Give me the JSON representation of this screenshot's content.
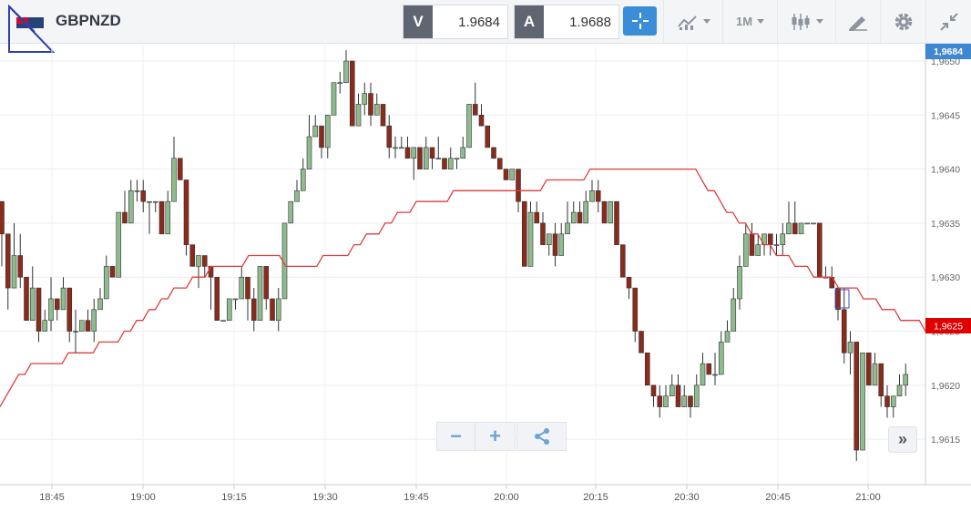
{
  "toolbar": {
    "symbol": "GBPNZD",
    "sell_label": "V",
    "sell_price": "1.9684",
    "buy_label": "A",
    "buy_price": "1.9688",
    "timeframe": "1M",
    "icons": [
      "flag-icon",
      "crosshair-icon",
      "indicators-icon",
      "timeframe-dropdown",
      "candle-type-icon",
      "drawing-icon",
      "gear-icon",
      "collapse-icon"
    ],
    "accent_color": "#3a8ed8"
  },
  "chart_data": {
    "type": "candlestick",
    "symbol": "GBPNZD",
    "timeframe": "1M",
    "x_ticks": [
      "18:45",
      "19:00",
      "19:15",
      "19:30",
      "19:45",
      "20:00",
      "20:15",
      "20:30",
      "20:45",
      "21:00"
    ],
    "y_ticks": [
      "1,9650",
      "1,9645",
      "1,9640",
      "1,9635",
      "1,9630",
      "1,9625",
      "1,9620",
      "1,9615"
    ],
    "ylim": [
      1.96108,
      1.96516
    ],
    "last_price_label": "1,9684",
    "ma_label": "1,9625",
    "up_color": "#8fbc8f",
    "down_color": "#8b2b1b",
    "ma_color": "#e03c3c",
    "grid": true,
    "candles": [
      [
        1.9637,
        1.9637,
        1.9631,
        1.9634
      ],
      [
        1.9634,
        1.9634,
        1.9627,
        1.9629
      ],
      [
        1.9629,
        1.9635,
        1.9629,
        1.9632
      ],
      [
        1.9632,
        1.9634,
        1.9629,
        1.963
      ],
      [
        1.963,
        1.963,
        1.9626,
        1.9626
      ],
      [
        1.9626,
        1.9631,
        1.9626,
        1.9629
      ],
      [
        1.9629,
        1.9629,
        1.9624,
        1.9625
      ],
      [
        1.9625,
        1.9627,
        1.9625,
        1.9626
      ],
      [
        1.9626,
        1.963,
        1.9625,
        1.9628
      ],
      [
        1.9628,
        1.9628,
        1.9626,
        1.9627
      ],
      [
        1.9627,
        1.963,
        1.9627,
        1.9629
      ],
      [
        1.9629,
        1.9629,
        1.9624,
        1.9625
      ],
      [
        1.9625,
        1.9627,
        1.9623,
        1.9625
      ],
      [
        1.9625,
        1.9626,
        1.9625,
        1.9626
      ],
      [
        1.9626,
        1.9627,
        1.9625,
        1.9625
      ],
      [
        1.9625,
        1.9628,
        1.9624,
        1.9627
      ],
      [
        1.9627,
        1.9629,
        1.9627,
        1.9628
      ],
      [
        1.9628,
        1.9632,
        1.9628,
        1.9631
      ],
      [
        1.9631,
        1.9631,
        1.963,
        1.963
      ],
      [
        1.963,
        1.9636,
        1.963,
        1.9636
      ],
      [
        1.9636,
        1.9638,
        1.9635,
        1.9635
      ],
      [
        1.9635,
        1.9639,
        1.9635,
        1.9638
      ],
      [
        1.9638,
        1.9639,
        1.9637,
        1.9638
      ],
      [
        1.9638,
        1.9639,
        1.9636,
        1.9637
      ],
      [
        1.9637,
        1.9637,
        1.9634,
        1.9637
      ],
      [
        1.9637,
        1.9637,
        1.9636,
        1.9637
      ],
      [
        1.9637,
        1.9637,
        1.9634,
        1.9634
      ],
      [
        1.9634,
        1.9638,
        1.9634,
        1.9637
      ],
      [
        1.9637,
        1.9643,
        1.9637,
        1.9641
      ],
      [
        1.9641,
        1.9641,
        1.9639,
        1.9639
      ],
      [
        1.9639,
        1.9639,
        1.9632,
        1.9633
      ],
      [
        1.9633,
        1.9633,
        1.9631,
        1.9631
      ],
      [
        1.9631,
        1.9632,
        1.9629,
        1.9632
      ],
      [
        1.9632,
        1.9632,
        1.963,
        1.9631
      ],
      [
        1.9631,
        1.9631,
        1.9627,
        1.963
      ],
      [
        1.963,
        1.963,
        1.9626,
        1.9626
      ],
      [
        1.9626,
        1.9626,
        1.9626,
        1.9626
      ],
      [
        1.9626,
        1.9628,
        1.9626,
        1.9628
      ],
      [
        1.9628,
        1.9628,
        1.9627,
        1.9628
      ],
      [
        1.9628,
        1.9631,
        1.9628,
        1.963
      ],
      [
        1.963,
        1.963,
        1.9626,
        1.9628
      ],
      [
        1.9628,
        1.9629,
        1.9625,
        1.9626
      ],
      [
        1.9626,
        1.9631,
        1.9626,
        1.9631
      ],
      [
        1.9631,
        1.9631,
        1.9627,
        1.9628
      ],
      [
        1.9628,
        1.9628,
        1.9626,
        1.9626
      ],
      [
        1.9626,
        1.9629,
        1.9625,
        1.9628
      ],
      [
        1.9628,
        1.9635,
        1.9628,
        1.9635
      ],
      [
        1.9635,
        1.9637,
        1.9635,
        1.9637
      ],
      [
        1.9637,
        1.9639,
        1.9637,
        1.9638
      ],
      [
        1.9638,
        1.9641,
        1.9638,
        1.964
      ],
      [
        1.964,
        1.9645,
        1.964,
        1.9643
      ],
      [
        1.9643,
        1.9645,
        1.9643,
        1.9644
      ],
      [
        1.9644,
        1.9644,
        1.9641,
        1.9642
      ],
      [
        1.9642,
        1.9645,
        1.9641,
        1.9645
      ],
      [
        1.9645,
        1.9648,
        1.9645,
        1.9648
      ],
      [
        1.9648,
        1.9649,
        1.9647,
        1.9648
      ],
      [
        1.9648,
        1.9651,
        1.9648,
        1.965
      ],
      [
        1.965,
        1.965,
        1.9644,
        1.9644
      ],
      [
        1.9644,
        1.9647,
        1.9644,
        1.9646
      ],
      [
        1.9646,
        1.9648,
        1.9645,
        1.9647
      ],
      [
        1.9647,
        1.9648,
        1.9644,
        1.9645
      ],
      [
        1.9645,
        1.9647,
        1.9645,
        1.9646
      ],
      [
        1.9646,
        1.9646,
        1.9644,
        1.9644
      ],
      [
        1.9644,
        1.9645,
        1.9641,
        1.9642
      ],
      [
        1.9642,
        1.9643,
        1.9641,
        1.9642
      ],
      [
        1.9642,
        1.9643,
        1.9642,
        1.9642
      ],
      [
        1.9642,
        1.9643,
        1.9641,
        1.9641
      ],
      [
        1.9641,
        1.9642,
        1.9639,
        1.9642
      ],
      [
        1.9642,
        1.9642,
        1.964,
        1.964
      ],
      [
        1.964,
        1.9643,
        1.964,
        1.9642
      ],
      [
        1.9642,
        1.9642,
        1.964,
        1.9641
      ],
      [
        1.9641,
        1.9643,
        1.9641,
        1.9641
      ],
      [
        1.9641,
        1.9641,
        1.964,
        1.964
      ],
      [
        1.964,
        1.9642,
        1.964,
        1.9641
      ],
      [
        1.9641,
        1.9641,
        1.964,
        1.9641
      ],
      [
        1.9641,
        1.9643,
        1.9641,
        1.9642
      ],
      [
        1.9642,
        1.9646,
        1.9642,
        1.9646
      ],
      [
        1.9646,
        1.9648,
        1.9645,
        1.9645
      ],
      [
        1.9645,
        1.9646,
        1.9644,
        1.9644
      ],
      [
        1.9644,
        1.9644,
        1.9642,
        1.9642
      ],
      [
        1.9642,
        1.9642,
        1.9641,
        1.9641
      ],
      [
        1.9641,
        1.9641,
        1.964,
        1.964
      ],
      [
        1.964,
        1.964,
        1.9639,
        1.9639
      ],
      [
        1.9639,
        1.964,
        1.9639,
        1.964
      ],
      [
        1.964,
        1.964,
        1.9636,
        1.9637
      ],
      [
        1.9637,
        1.9637,
        1.9631,
        1.9631
      ],
      [
        1.9631,
        1.9637,
        1.9631,
        1.9636
      ],
      [
        1.9636,
        1.9637,
        1.9635,
        1.9635
      ],
      [
        1.9635,
        1.9636,
        1.9633,
        1.9633
      ],
      [
        1.9633,
        1.9634,
        1.9632,
        1.9634
      ],
      [
        1.9634,
        1.9635,
        1.9631,
        1.9632
      ],
      [
        1.9632,
        1.9635,
        1.9632,
        1.9634
      ],
      [
        1.9634,
        1.9637,
        1.9634,
        1.9635
      ],
      [
        1.9635,
        1.9637,
        1.9635,
        1.9636
      ],
      [
        1.9636,
        1.9637,
        1.9635,
        1.9635
      ],
      [
        1.9635,
        1.9638,
        1.9635,
        1.9637
      ],
      [
        1.9637,
        1.9639,
        1.9637,
        1.9638
      ],
      [
        1.9638,
        1.9639,
        1.9636,
        1.9637
      ],
      [
        1.9637,
        1.9637,
        1.9635,
        1.9635
      ],
      [
        1.9635,
        1.9637,
        1.9635,
        1.9637
      ],
      [
        1.9637,
        1.9637,
        1.9633,
        1.9633
      ],
      [
        1.9633,
        1.9633,
        1.963,
        1.963
      ],
      [
        1.963,
        1.963,
        1.9628,
        1.9629
      ],
      [
        1.9629,
        1.9629,
        1.9624,
        1.9625
      ],
      [
        1.9625,
        1.9625,
        1.9623,
        1.9623
      ],
      [
        1.9623,
        1.9623,
        1.962,
        1.962
      ],
      [
        1.962,
        1.962,
        1.9618,
        1.9619
      ],
      [
        1.9619,
        1.962,
        1.9617,
        1.9618
      ],
      [
        1.9618,
        1.962,
        1.9618,
        1.9619
      ],
      [
        1.9619,
        1.9621,
        1.9619,
        1.962
      ],
      [
        1.962,
        1.9621,
        1.9618,
        1.9618
      ],
      [
        1.9618,
        1.962,
        1.9618,
        1.9619
      ],
      [
        1.9619,
        1.9619,
        1.9617,
        1.9618
      ],
      [
        1.9618,
        1.9621,
        1.9618,
        1.962
      ],
      [
        1.962,
        1.9623,
        1.962,
        1.9622
      ],
      [
        1.9622,
        1.9622,
        1.9621,
        1.9621
      ],
      [
        1.9621,
        1.9623,
        1.962,
        1.9621
      ],
      [
        1.9621,
        1.9625,
        1.9621,
        1.9624
      ],
      [
        1.9624,
        1.9626,
        1.9624,
        1.9625
      ],
      [
        1.9625,
        1.9629,
        1.9625,
        1.9628
      ],
      [
        1.9628,
        1.9632,
        1.9627,
        1.9631
      ],
      [
        1.9631,
        1.9635,
        1.9631,
        1.9634
      ],
      [
        1.9634,
        1.9635,
        1.9632,
        1.9632
      ],
      [
        1.9632,
        1.9634,
        1.9632,
        1.9633
      ],
      [
        1.9633,
        1.9634,
        1.9632,
        1.9634
      ],
      [
        1.9634,
        1.9634,
        1.9632,
        1.9633
      ],
      [
        1.9633,
        1.9634,
        1.9632,
        1.9633
      ],
      [
        1.9633,
        1.9635,
        1.9632,
        1.9634
      ],
      [
        1.9634,
        1.9637,
        1.9634,
        1.9635
      ],
      [
        1.9635,
        1.9637,
        1.9634,
        1.9634
      ],
      [
        1.9634,
        1.9635,
        1.9634,
        1.9635
      ],
      [
        1.9635,
        1.9635,
        1.9635,
        1.9635
      ],
      [
        1.9635,
        1.9635,
        1.9635,
        1.9635
      ],
      [
        1.9635,
        1.9635,
        1.963,
        1.963
      ],
      [
        1.963,
        1.9631,
        1.963,
        1.963
      ],
      [
        1.963,
        1.9631,
        1.9629,
        1.9629
      ],
      [
        1.9629,
        1.9629,
        1.9626,
        1.9627
      ],
      [
        1.9627,
        1.9629,
        1.9622,
        1.9623
      ],
      [
        1.9623,
        1.9625,
        1.9621,
        1.9624
      ],
      [
        1.9624,
        1.9624,
        1.9613,
        1.9614
      ],
      [
        1.9614,
        1.9623,
        1.9614,
        1.9623
      ],
      [
        1.9623,
        1.9623,
        1.962,
        1.962
      ],
      [
        1.962,
        1.9623,
        1.962,
        1.9622
      ],
      [
        1.9622,
        1.9622,
        1.9618,
        1.9619
      ],
      [
        1.9619,
        1.962,
        1.9617,
        1.9618
      ],
      [
        1.9618,
        1.9619,
        1.9617,
        1.9619
      ],
      [
        1.9619,
        1.9621,
        1.9619,
        1.962
      ],
      [
        1.962,
        1.9622,
        1.9619,
        1.9621
      ]
    ],
    "moving_average": [
      1.9618,
      1.9619,
      1.962,
      1.9621,
      1.9621,
      1.9622,
      1.9622,
      1.9622,
      1.9622,
      1.9622,
      1.9622,
      1.9623,
      1.9623,
      1.9623,
      1.9623,
      1.9623,
      1.9624,
      1.9624,
      1.9624,
      1.9624,
      1.9625,
      1.9625,
      1.9626,
      1.9626,
      1.9627,
      1.9627,
      1.9628,
      1.9628,
      1.9629,
      1.9629,
      1.9629,
      1.963,
      1.963,
      1.963,
      1.9631,
      1.9631,
      1.9631,
      1.9631,
      1.9631,
      1.9631,
      1.9632,
      1.9632,
      1.9632,
      1.9632,
      1.9632,
      1.9632,
      1.9631,
      1.9631,
      1.9631,
      1.9631,
      1.9631,
      1.9631,
      1.9632,
      1.9632,
      1.9632,
      1.9632,
      1.9632,
      1.9633,
      1.9633,
      1.9634,
      1.9634,
      1.9634,
      1.9635,
      1.9635,
      1.9636,
      1.9636,
      1.9636,
      1.9637,
      1.9637,
      1.9637,
      1.9637,
      1.9637,
      1.9637,
      1.9638,
      1.9638,
      1.9638,
      1.9638,
      1.9638,
      1.9638,
      1.9638,
      1.9638,
      1.9638,
      1.9638,
      1.9638,
      1.9638,
      1.9638,
      1.9638,
      1.9638,
      1.9639,
      1.9639,
      1.9639,
      1.9639,
      1.9639,
      1.9639,
      1.9639,
      1.964,
      1.964,
      1.964,
      1.964,
      1.964,
      1.964,
      1.964,
      1.964,
      1.964,
      1.964,
      1.964,
      1.964,
      1.964,
      1.964,
      1.964,
      1.964,
      1.964,
      1.964,
      1.9639,
      1.9638,
      1.9638,
      1.9637,
      1.9636,
      1.9636,
      1.9635,
      1.9635,
      1.9634,
      1.9634,
      1.9633,
      1.9633,
      1.9632,
      1.9632,
      1.9632,
      1.9631,
      1.9631,
      1.9631,
      1.963,
      1.963,
      1.963,
      1.963,
      1.9629,
      1.9629,
      1.9629,
      1.9629,
      1.9628,
      1.9628,
      1.9628,
      1.9627,
      1.9627,
      1.9627,
      1.9626,
      1.9626,
      1.9626,
      1.9626,
      1.9625
    ]
  },
  "zoom_controls": {
    "zoom_out": "−",
    "zoom_in": "+",
    "share_icon": "share-icon"
  },
  "scroll_right_label": "»"
}
